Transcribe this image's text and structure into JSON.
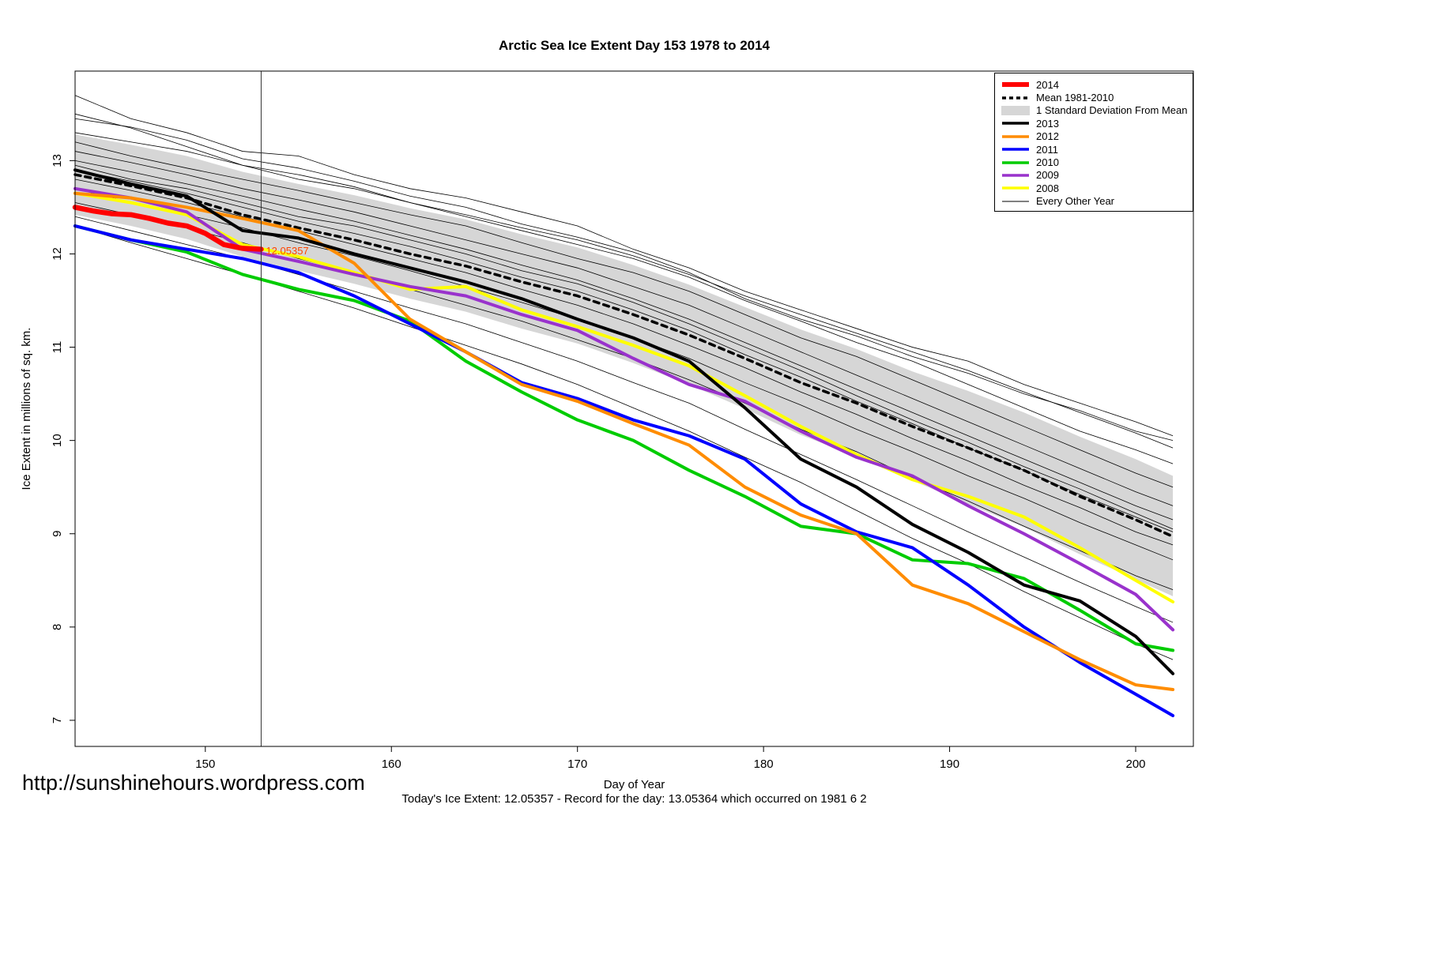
{
  "title": "Arctic Sea Ice Extent Day 153 1978 to 2014",
  "footer": {
    "url": "http://sunshinehours.wordpress.com",
    "status": "Today's Ice Extent: 12.05357  - Record for the day: 13.05364 which occurred on 1981 6 2"
  },
  "annotation": {
    "label": "12.05357",
    "day": 153,
    "value": 12.03,
    "color": "#ff4500"
  },
  "legend": {
    "items": [
      {
        "label": "2014",
        "color": "#ff0000",
        "type": "line-thick"
      },
      {
        "label": "Mean 1981-2010",
        "color": "#000000",
        "type": "line-dashed"
      },
      {
        "label": "1 Standard Deviation From Mean",
        "color": "#d6d6d6",
        "type": "box"
      },
      {
        "label": "2013",
        "color": "#000000",
        "type": "line"
      },
      {
        "label": "2012",
        "color": "#ff8c00",
        "type": "line"
      },
      {
        "label": "2011",
        "color": "#0000ff",
        "type": "line"
      },
      {
        "label": "2010",
        "color": "#00cc00",
        "type": "line"
      },
      {
        "label": "2009",
        "color": "#9932cc",
        "type": "line"
      },
      {
        "label": "2008",
        "color": "#ffff00",
        "type": "line"
      },
      {
        "label": "Every Other Year",
        "color": "#000000",
        "type": "line-thin"
      }
    ]
  },
  "chart_data": {
    "type": "line",
    "title": "Arctic Sea Ice Extent Day 153 1978 to 2014",
    "xlabel": "Day of Year",
    "ylabel": "Ice Extent in millions of sq. km.",
    "xlim": [
      143,
      203.1
    ],
    "ylim": [
      6.72,
      13.96
    ],
    "xticks": [
      150,
      160,
      170,
      180,
      190,
      200
    ],
    "yticks": [
      7,
      8,
      9,
      10,
      11,
      12,
      13
    ],
    "vline_day": 153,
    "x_grid": [
      143,
      146,
      149,
      152,
      155,
      158,
      161,
      164,
      167,
      170,
      173,
      176,
      179,
      182,
      185,
      188,
      191,
      194,
      197,
      200,
      202
    ],
    "band": {
      "name": "1 Standard Deviation From Mean",
      "color": "#d6d6d6",
      "upper": [
        13.28,
        13.17,
        13.05,
        12.88,
        12.75,
        12.63,
        12.49,
        12.37,
        12.21,
        12.07,
        11.88,
        11.67,
        11.43,
        11.19,
        10.98,
        10.74,
        10.53,
        10.3,
        10.04,
        9.8,
        9.62
      ],
      "lower": [
        12.42,
        12.3,
        12.16,
        11.97,
        11.82,
        11.68,
        11.52,
        11.38,
        11.2,
        11.04,
        10.83,
        10.6,
        10.34,
        10.06,
        9.83,
        9.57,
        9.32,
        9.07,
        8.78,
        8.51,
        8.33
      ]
    },
    "series": [
      {
        "name": "Mean 1981-2010",
        "color": "#000000",
        "width": 3.5,
        "dash": "7,6",
        "y": [
          12.85,
          12.73,
          12.6,
          12.42,
          12.28,
          12.15,
          12.0,
          11.87,
          11.7,
          11.55,
          11.35,
          11.13,
          10.88,
          10.62,
          10.4,
          10.15,
          9.92,
          9.68,
          9.4,
          9.15,
          8.97
        ]
      },
      {
        "name": "2008",
        "color": "#ffff00",
        "width": 4,
        "y": [
          12.65,
          12.55,
          12.42,
          12.1,
          11.97,
          11.8,
          11.62,
          11.65,
          11.4,
          11.22,
          11.02,
          10.8,
          10.48,
          10.15,
          9.85,
          9.58,
          9.4,
          9.18,
          8.85,
          8.5,
          8.27
        ]
      },
      {
        "name": "2009",
        "color": "#9932cc",
        "width": 4,
        "y": [
          12.7,
          12.6,
          12.45,
          12.05,
          11.92,
          11.78,
          11.65,
          11.55,
          11.35,
          11.18,
          10.88,
          10.6,
          10.42,
          10.1,
          9.82,
          9.62,
          9.3,
          9.0,
          8.68,
          8.35,
          7.97
        ]
      },
      {
        "name": "2010",
        "color": "#00cc00",
        "width": 4,
        "y": [
          12.3,
          12.15,
          12.02,
          11.78,
          11.62,
          11.5,
          11.28,
          10.85,
          10.52,
          10.22,
          10.0,
          9.68,
          9.4,
          9.08,
          9.0,
          8.72,
          8.68,
          8.52,
          8.18,
          7.82,
          7.75
        ]
      },
      {
        "name": "2011",
        "color": "#0000ff",
        "width": 4,
        "y": [
          12.3,
          12.15,
          12.05,
          11.95,
          11.8,
          11.55,
          11.25,
          10.95,
          10.62,
          10.45,
          10.22,
          10.05,
          9.8,
          9.32,
          9.02,
          8.85,
          8.45,
          8.0,
          7.62,
          7.28,
          7.05
        ]
      },
      {
        "name": "2012",
        "color": "#ff8c00",
        "width": 4,
        "y": [
          12.65,
          12.6,
          12.5,
          12.38,
          12.25,
          11.9,
          11.3,
          10.95,
          10.6,
          10.42,
          10.18,
          9.95,
          9.5,
          9.2,
          9.0,
          8.45,
          8.25,
          7.95,
          7.65,
          7.38,
          7.33
        ]
      },
      {
        "name": "2013",
        "color": "#000000",
        "width": 4,
        "y": [
          12.9,
          12.75,
          12.62,
          12.25,
          12.17,
          12.0,
          11.85,
          11.7,
          11.52,
          11.3,
          11.1,
          10.85,
          10.35,
          9.8,
          9.5,
          9.1,
          8.8,
          8.45,
          8.28,
          7.9,
          7.5
        ]
      },
      {
        "name": "2014",
        "color": "#ff0000",
        "width": 6.5,
        "x": [
          143,
          144,
          145,
          146,
          147,
          148,
          149,
          150,
          151,
          152,
          153
        ],
        "y": [
          12.5,
          12.46,
          12.43,
          12.42,
          12.38,
          12.33,
          12.3,
          12.22,
          12.1,
          12.06,
          12.05
        ]
      }
    ],
    "other_years": {
      "color": "#000000",
      "width": 0.8,
      "series": [
        [
          13.45,
          13.36,
          13.22,
          13.02,
          12.92,
          12.78,
          12.62,
          12.5,
          12.32,
          12.18,
          12.02,
          11.8,
          11.52,
          11.3,
          11.12,
          10.9,
          10.72,
          10.5,
          10.32,
          10.1,
          10.0
        ],
        [
          13.7,
          13.45,
          13.3,
          13.1,
          13.05,
          12.85,
          12.7,
          12.6,
          12.45,
          12.3,
          12.05,
          11.85,
          11.6,
          11.4,
          11.2,
          11.0,
          10.85,
          10.6,
          10.4,
          10.2,
          10.05
        ],
        [
          13.3,
          13.2,
          13.1,
          12.95,
          12.8,
          12.7,
          12.55,
          12.4,
          12.25,
          12.1,
          11.95,
          11.75,
          11.5,
          11.28,
          11.05,
          10.85,
          10.6,
          10.35,
          10.1,
          9.9,
          9.75
        ],
        [
          13.2,
          13.05,
          12.92,
          12.8,
          12.68,
          12.55,
          12.42,
          12.3,
          12.12,
          11.95,
          11.8,
          11.6,
          11.35,
          11.1,
          10.9,
          10.65,
          10.4,
          10.15,
          9.9,
          9.65,
          9.5
        ],
        [
          13.1,
          12.98,
          12.85,
          12.7,
          12.58,
          12.45,
          12.3,
          12.15,
          12.0,
          11.85,
          11.65,
          11.45,
          11.2,
          10.95,
          10.7,
          10.45,
          10.2,
          9.95,
          9.7,
          9.45,
          9.3
        ],
        [
          13.0,
          12.88,
          12.75,
          12.62,
          12.48,
          12.35,
          12.2,
          12.05,
          11.88,
          11.72,
          11.52,
          11.3,
          11.05,
          10.8,
          10.55,
          10.3,
          10.05,
          9.8,
          9.55,
          9.3,
          9.15
        ],
        [
          12.9,
          12.78,
          12.65,
          12.5,
          12.35,
          12.22,
          12.08,
          11.92,
          11.75,
          11.6,
          11.4,
          11.18,
          10.92,
          10.68,
          10.42,
          10.18,
          9.92,
          9.68,
          9.42,
          9.18,
          9.02
        ],
        [
          12.8,
          12.68,
          12.55,
          12.4,
          12.25,
          12.1,
          11.95,
          11.8,
          11.62,
          11.45,
          11.25,
          11.02,
          10.78,
          10.52,
          10.28,
          10.02,
          9.78,
          9.52,
          9.28,
          9.02,
          8.88
        ],
        [
          12.7,
          12.55,
          12.42,
          12.28,
          12.12,
          11.98,
          11.82,
          11.65,
          11.48,
          11.3,
          11.1,
          10.88,
          10.62,
          10.38,
          10.12,
          9.88,
          9.62,
          9.38,
          9.12,
          8.88,
          8.72
        ],
        [
          12.55,
          12.42,
          12.28,
          12.12,
          11.95,
          11.8,
          11.62,
          11.45,
          11.28,
          11.08,
          10.88,
          10.65,
          10.4,
          10.12,
          9.88,
          9.6,
          9.35,
          9.08,
          8.82,
          8.55,
          8.4
        ],
        [
          12.4,
          12.25,
          12.1,
          11.95,
          11.78,
          11.6,
          11.42,
          11.25,
          11.05,
          10.85,
          10.62,
          10.4,
          10.12,
          9.85,
          9.58,
          9.3,
          9.02,
          8.75,
          8.48,
          8.22,
          8.05
        ],
        [
          12.3,
          12.12,
          11.95,
          11.78,
          11.6,
          11.42,
          11.22,
          11.02,
          10.82,
          10.6,
          10.35,
          10.1,
          9.82,
          9.55,
          9.25,
          8.95,
          8.68,
          8.38,
          8.1,
          7.82,
          7.65
        ],
        [
          13.5,
          13.35,
          13.15,
          12.95,
          12.85,
          12.72,
          12.55,
          12.42,
          12.28,
          12.15,
          11.98,
          11.78,
          11.55,
          11.35,
          11.15,
          10.95,
          10.75,
          10.52,
          10.3,
          10.08,
          9.92
        ],
        [
          12.95,
          12.8,
          12.7,
          12.55,
          12.4,
          12.3,
          12.15,
          12.0,
          11.82,
          11.68,
          11.48,
          11.25,
          11.0,
          10.75,
          10.48,
          10.22,
          9.98,
          9.72,
          9.48,
          9.22,
          9.05
        ]
      ]
    }
  }
}
